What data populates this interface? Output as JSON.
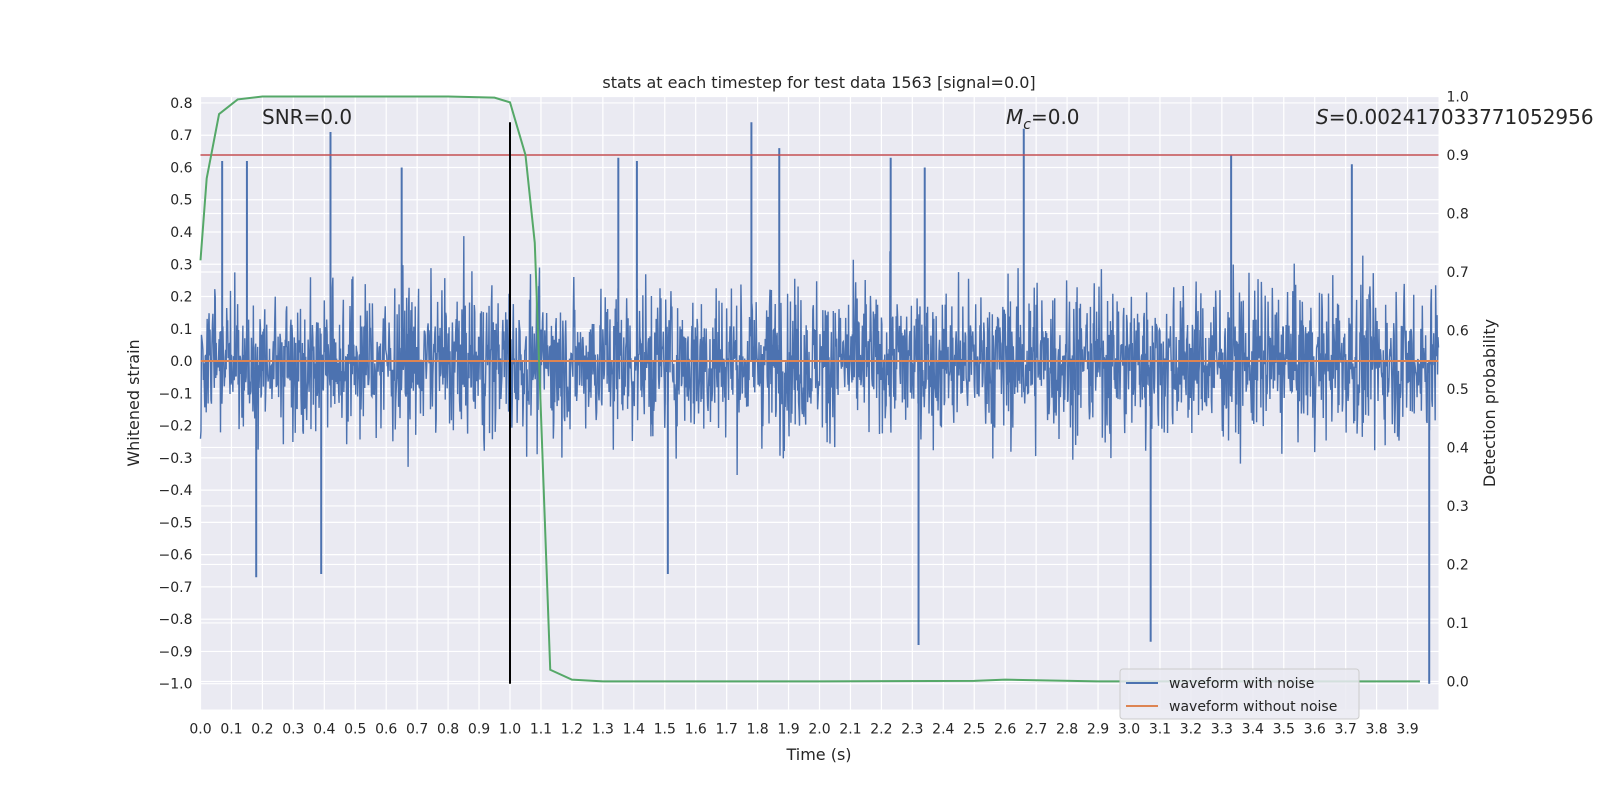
{
  "chart_data": {
    "type": "line",
    "title": "stats at each timestep for test data 1563 [signal=0.0]",
    "xlabel": "Time (s)",
    "ylabel": "Whitened strain",
    "y2label": "Detection probability",
    "xlim": [
      0.0,
      4.0
    ],
    "ylim": [
      -1.08,
      0.82
    ],
    "y2lim": [
      -0.048,
      1.0
    ],
    "x_ticks": [
      "0.0",
      "0.1",
      "0.2",
      "0.3",
      "0.4",
      "0.5",
      "0.6",
      "0.7",
      "0.8",
      "0.9",
      "1.0",
      "1.1",
      "1.2",
      "1.3",
      "1.4",
      "1.5",
      "1.6",
      "1.7",
      "1.8",
      "1.9",
      "2.0",
      "2.1",
      "2.2",
      "2.3",
      "2.4",
      "2.5",
      "2.6",
      "2.7",
      "2.8",
      "2.9",
      "3.0",
      "3.1",
      "3.2",
      "3.3",
      "3.4",
      "3.5",
      "3.6",
      "3.7",
      "3.8",
      "3.9"
    ],
    "y_ticks": [
      "0.8",
      "0.7",
      "0.6",
      "0.5",
      "0.4",
      "0.3",
      "0.2",
      "0.1",
      "0.0",
      "−0.1",
      "−0.2",
      "−0.3",
      "−0.4",
      "−0.5",
      "−0.6",
      "−0.7",
      "−0.8",
      "−0.9",
      "−1.0"
    ],
    "y2_ticks": [
      "1.0",
      "0.9",
      "0.8",
      "0.7",
      "0.6",
      "0.5",
      "0.4",
      "0.3",
      "0.2",
      "0.1",
      "0.0"
    ],
    "grid": true,
    "legend_position": "bottom-right",
    "annotations": {
      "snr": "SNR=0.0",
      "mc_symbol": "M",
      "mc_sub": "c",
      "mc_value": "=0.0",
      "s_symbol": "S",
      "s_value": "=0.002417033771052956"
    },
    "series": [
      {
        "name": "waveform with noise",
        "color": "#4c72b0",
        "noise_amplitude": 0.16,
        "spikes": [
          {
            "x": 0.07,
            "y": 0.62
          },
          {
            "x": 0.15,
            "y": 0.62
          },
          {
            "x": 0.42,
            "y": 0.71
          },
          {
            "x": 0.65,
            "y": 0.6
          },
          {
            "x": 1.35,
            "y": 0.63
          },
          {
            "x": 1.41,
            "y": 0.62
          },
          {
            "x": 1.78,
            "y": 0.74
          },
          {
            "x": 1.87,
            "y": 0.66
          },
          {
            "x": 2.23,
            "y": 0.63
          },
          {
            "x": 2.34,
            "y": 0.6
          },
          {
            "x": 2.66,
            "y": 0.72
          },
          {
            "x": 3.33,
            "y": 0.64
          },
          {
            "x": 3.72,
            "y": 0.61
          },
          {
            "x": 0.18,
            "y": -0.67
          },
          {
            "x": 0.39,
            "y": -0.66
          },
          {
            "x": 1.51,
            "y": -0.66
          },
          {
            "x": 2.32,
            "y": -0.88
          },
          {
            "x": 3.07,
            "y": -0.87
          },
          {
            "x": 3.97,
            "y": -1.0
          }
        ]
      },
      {
        "name": "waveform without noise",
        "color": "#dd8452",
        "x": [
          0.0,
          4.0
        ],
        "y": [
          0.0,
          0.0
        ]
      },
      {
        "name": "detection probability",
        "color": "#55a868",
        "axis": "right",
        "x": [
          0.0,
          0.02,
          0.06,
          0.12,
          0.2,
          0.4,
          0.6,
          0.8,
          0.95,
          1.0,
          1.05,
          1.08,
          1.13,
          1.2,
          1.3,
          1.5,
          2.0,
          2.5,
          2.6,
          2.7,
          2.9,
          3.5,
          3.94
        ],
        "y": [
          0.72,
          0.86,
          0.97,
          0.995,
          1.0,
          1.0,
          1.0,
          1.0,
          0.998,
          0.99,
          0.9,
          0.75,
          0.02,
          0.003,
          0.0,
          0.0,
          0.0,
          0.001,
          0.003,
          0.002,
          0.0,
          0.0,
          0.0
        ]
      }
    ],
    "threshold_line": {
      "color": "#c44e52",
      "y2": 0.9
    },
    "vertical_marker": {
      "color": "#000000",
      "x": 1.0,
      "ymin": -1.0,
      "ymax": 0.74
    }
  }
}
